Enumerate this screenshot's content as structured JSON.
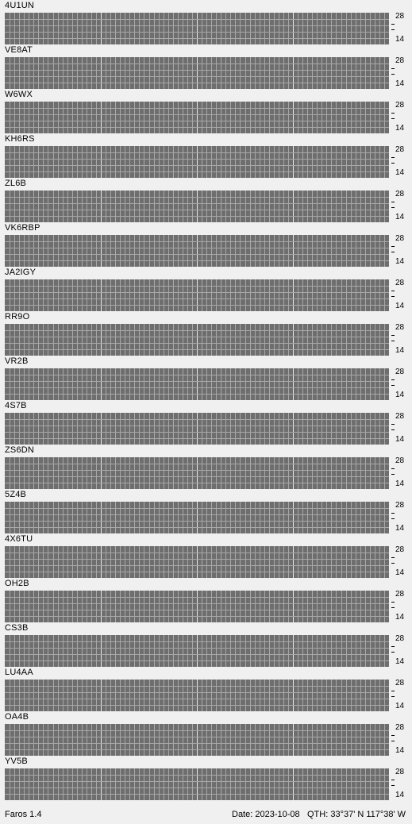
{
  "app": {
    "name": "Faros 1.4"
  },
  "status": {
    "date": "Date: 2023-10-08",
    "qth": "QTH: 33°37' N  117°38' W"
  },
  "scale_labels": {
    "top": "28",
    "bottom": "14"
  },
  "colors": {
    "background": "#f0f0f0",
    "grid_bg": "#6e6e6e",
    "grid_line": "#a8a8a8",
    "grid_major_line": "#e6e6e6",
    "gray_mark": "#a0a0a0",
    "cyan": "#90ecf8",
    "blue": "#8cc4f8",
    "green": "#b8f0a8",
    "violet": "#8888f0"
  },
  "beacons": [
    {
      "name": "4U1UN"
    },
    {
      "name": "VE8AT"
    },
    {
      "name": "W6WX"
    },
    {
      "name": "KH6RS"
    },
    {
      "name": "ZL6B"
    },
    {
      "name": "VK6RBP"
    },
    {
      "name": "JA2IGY"
    },
    {
      "name": "RR9O"
    },
    {
      "name": "VR2B"
    },
    {
      "name": "4S7B"
    },
    {
      "name": "ZS6DN"
    },
    {
      "name": "5Z4B"
    },
    {
      "name": "4X6TU"
    },
    {
      "name": "OH2B"
    },
    {
      "name": "CS3B"
    },
    {
      "name": "LU4AA"
    },
    {
      "name": "OA4B"
    },
    {
      "name": "YV5B"
    }
  ]
}
